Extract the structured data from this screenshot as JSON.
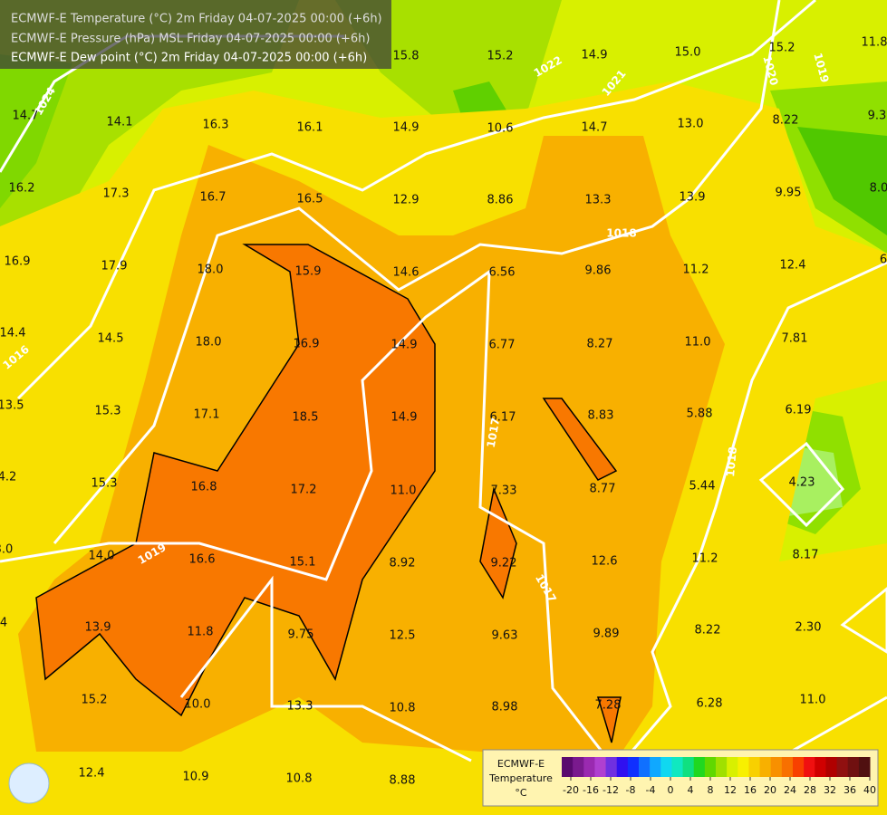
{
  "header": {
    "lines": [
      "ECMWF-E Temperature (°C) 2m Friday 04-07-2025 00:00 (+6h)",
      "ECMWF-E Pressure (hPa) MSL Friday 04-07-2025 00:00 (+6h)",
      "ECMWF-E Dew point (°C) 2m Friday 04-07-2025 00:00 (+6h)"
    ]
  },
  "dew_point_labels": [
    "15.8",
    "15.2",
    "14.9",
    "15.0",
    "15.2",
    "11.8",
    "14.7",
    "14.1",
    "16.3",
    "16.1",
    "14.9",
    "10.6",
    "14.7",
    "13.0",
    "8.22",
    "9.3",
    "16.2",
    "17.3",
    "16.7",
    "16.5",
    "12.9",
    "8.86",
    "13.3",
    "13.9",
    "9.95",
    "8.0",
    "16.9",
    "17.9",
    "18.0",
    "15.9",
    "14.6",
    "6.56",
    "9.86",
    "11.2",
    "12.4",
    "6",
    "14.4",
    "14.5",
    "18.0",
    "16.9",
    "14.9",
    "6.77",
    "8.27",
    "11.0",
    "7.81",
    "13.5",
    "15.3",
    "17.1",
    "18.5",
    "14.9",
    "6.17",
    "8.83",
    "5.88",
    "6.19",
    "4.2",
    "15.3",
    "16.8",
    "17.2",
    "11.0",
    "7.33",
    "8.77",
    "5.44",
    "4.23",
    "3.0",
    "14.0",
    "16.6",
    "15.1",
    "8.92",
    "9.22",
    "12.6",
    "11.2",
    "8.17",
    "4",
    "13.9",
    "11.8",
    "9.75",
    "12.5",
    "9.63",
    "9.89",
    "8.22",
    "2.30",
    "15.2",
    "10.0",
    "13.3",
    "10.8",
    "8.98",
    "7.28",
    "6.28",
    "11.0",
    "12.4",
    "10.9",
    "10.8",
    "8.88"
  ],
  "isobar_labels": [
    "1024",
    "1022",
    "1021",
    "1020",
    "1019",
    "1018",
    "1017",
    "1019",
    "1017",
    "1018",
    "1016"
  ],
  "legend": {
    "title": "ECMWF-E",
    "variable": "Temperature",
    "unit": "°C",
    "ticks": [
      -20,
      -16,
      -12,
      -8,
      -4,
      0,
      4,
      8,
      12,
      16,
      20,
      24,
      28,
      32,
      36,
      40
    ]
  }
}
